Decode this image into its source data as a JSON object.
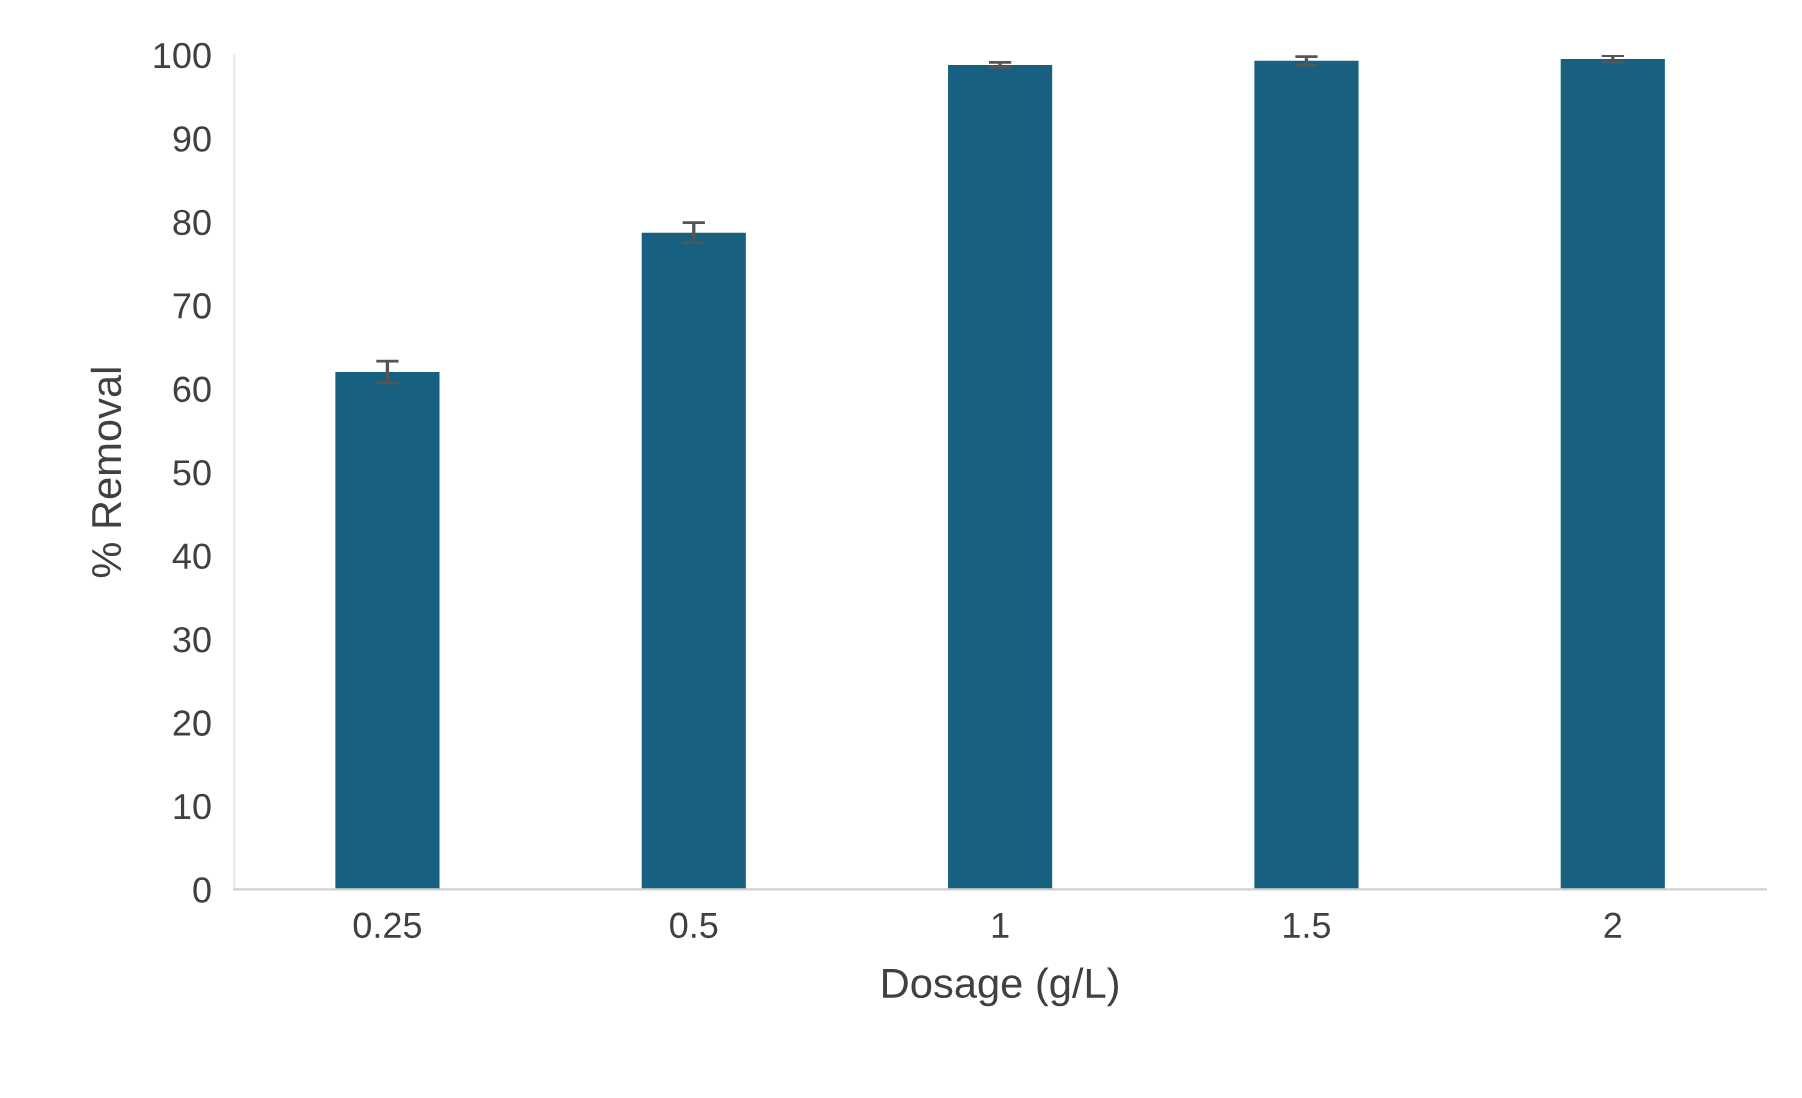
{
  "chart_data": {
    "type": "bar",
    "xlabel": "Dosage (g/L)",
    "ylabel": "% Removal",
    "categories": [
      "0.25",
      "0.5",
      "1",
      "1.5",
      "2"
    ],
    "values": [
      62,
      78.7,
      98.8,
      99.3,
      99.5
    ],
    "errors": [
      1.3,
      1.2,
      0.3,
      0.5,
      0.4
    ],
    "color": "#17607f",
    "ylim": [
      0,
      100
    ],
    "yticks": [
      0,
      10,
      20,
      30,
      40,
      50,
      60,
      70,
      80,
      90,
      100
    ],
    "grid": false,
    "legend": false
  }
}
